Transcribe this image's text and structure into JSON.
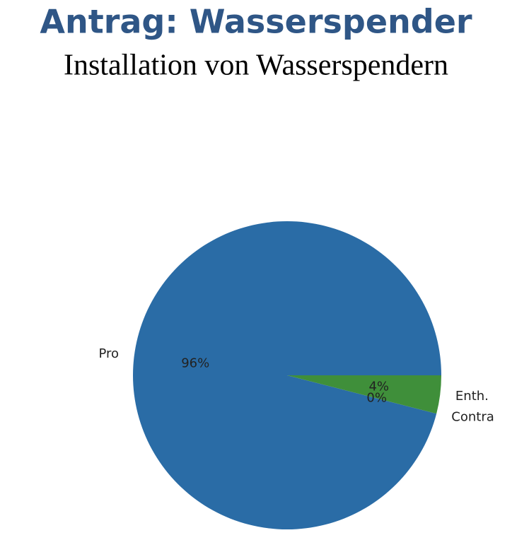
{
  "chart_data": {
    "type": "pie",
    "title": "Antrag: Wasserspender",
    "subtitle": "Installation von Wasserspendern",
    "categories": [
      "Pro",
      "Contra",
      "Enth."
    ],
    "values": [
      96,
      0,
      4
    ],
    "value_labels": [
      "96%",
      "0%",
      "4%"
    ],
    "colors": [
      "#2a6ca6",
      "#c0392b",
      "#3f8f3a"
    ]
  }
}
